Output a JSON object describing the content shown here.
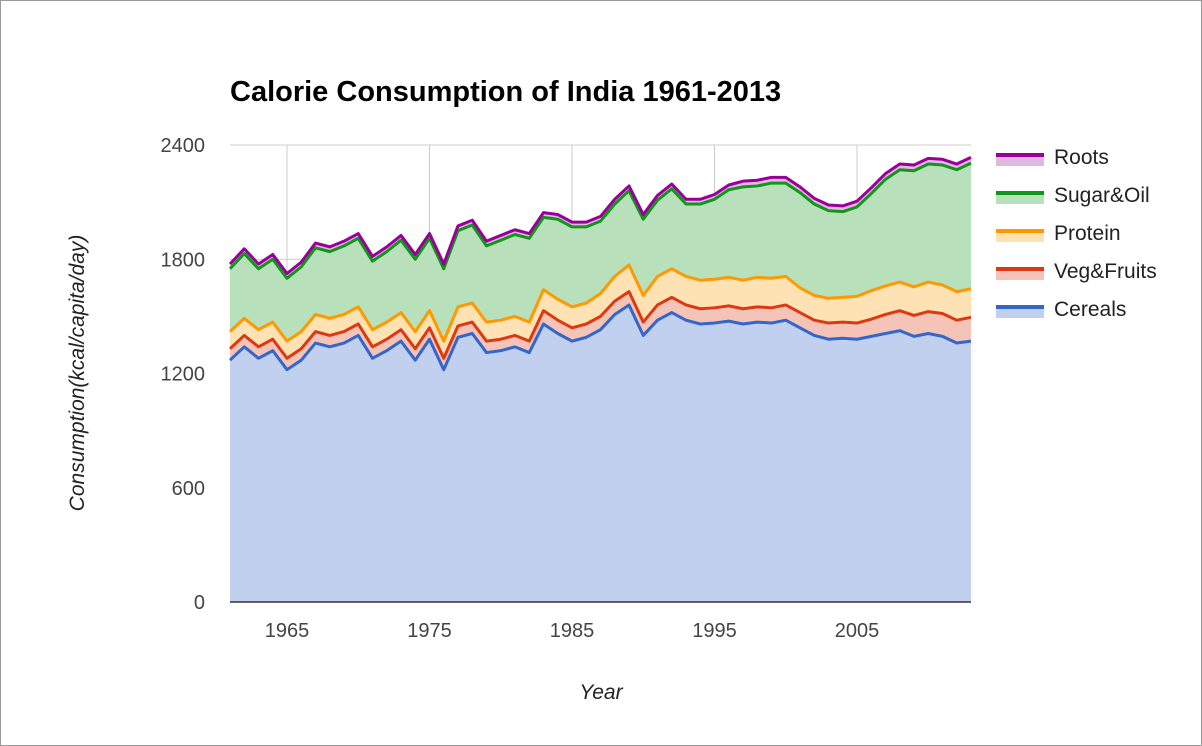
{
  "chart_data": {
    "type": "area",
    "stacked": true,
    "title": "Calorie Consumption of India 1961-2013",
    "xlabel": "Year",
    "ylabel": "Consumption(kcal/capita/day)",
    "xlim": [
      1961,
      2013
    ],
    "ylim": [
      0,
      2400
    ],
    "yticks": [
      "0",
      "600",
      "1200",
      "1800",
      "2400"
    ],
    "xticks": [
      "1965",
      "1975",
      "1985",
      "1995",
      "2005"
    ],
    "grid": true,
    "legend_position": "right",
    "x": [
      1961,
      1962,
      1963,
      1964,
      1965,
      1966,
      1967,
      1968,
      1969,
      1970,
      1971,
      1972,
      1973,
      1974,
      1975,
      1976,
      1977,
      1978,
      1979,
      1980,
      1981,
      1982,
      1983,
      1984,
      1985,
      1986,
      1987,
      1988,
      1989,
      1990,
      1991,
      1992,
      1993,
      1994,
      1995,
      1996,
      1997,
      1998,
      1999,
      2000,
      2001,
      2002,
      2003,
      2004,
      2005,
      2006,
      2007,
      2008,
      2009,
      2010,
      2011,
      2012,
      2013
    ],
    "series": [
      {
        "name": "Cereals",
        "color": "#3366cc",
        "fill": "#c2d0ef",
        "values": [
          1270,
          1340,
          1280,
          1320,
          1220,
          1270,
          1360,
          1340,
          1360,
          1400,
          1280,
          1320,
          1370,
          1270,
          1380,
          1220,
          1390,
          1410,
          1310,
          1320,
          1340,
          1310,
          1460,
          1410,
          1370,
          1390,
          1430,
          1510,
          1560,
          1400,
          1480,
          1520,
          1480,
          1460,
          1465,
          1475,
          1460,
          1470,
          1465,
          1480,
          1440,
          1400,
          1380,
          1385,
          1380,
          1395,
          1410,
          1425,
          1395,
          1410,
          1395,
          1360,
          1370
        ]
      },
      {
        "name": "Veg&Fruits",
        "color": "#dc3912",
        "fill": "#f5c4b8",
        "values": [
          60,
          60,
          60,
          60,
          60,
          60,
          60,
          60,
          60,
          60,
          60,
          60,
          60,
          60,
          60,
          60,
          60,
          60,
          60,
          60,
          60,
          60,
          70,
          70,
          70,
          70,
          70,
          70,
          70,
          70,
          80,
          80,
          80,
          80,
          80,
          80,
          80,
          80,
          80,
          80,
          80,
          80,
          85,
          85,
          85,
          90,
          100,
          105,
          110,
          115,
          120,
          120,
          125
        ]
      },
      {
        "name": "Protein",
        "color": "#ff9900",
        "fill": "#ffe2b3",
        "values": [
          90,
          90,
          90,
          90,
          90,
          90,
          90,
          90,
          90,
          90,
          90,
          90,
          90,
          90,
          90,
          90,
          100,
          100,
          100,
          100,
          100,
          100,
          110,
          110,
          110,
          110,
          120,
          130,
          140,
          140,
          150,
          150,
          150,
          150,
          150,
          150,
          150,
          155,
          155,
          150,
          130,
          130,
          130,
          130,
          140,
          150,
          150,
          150,
          150,
          155,
          150,
          150,
          150
        ]
      },
      {
        "name": "Sugar&Oil",
        "color": "#109618",
        "fill": "#b8e0bb",
        "values": [
          330,
          340,
          320,
          330,
          330,
          340,
          350,
          350,
          360,
          360,
          360,
          370,
          380,
          380,
          380,
          380,
          400,
          410,
          400,
          420,
          430,
          440,
          380,
          420,
          420,
          400,
          380,
          380,
          390,
          400,
          400,
          420,
          380,
          400,
          420,
          460,
          490,
          480,
          500,
          490,
          500,
          480,
          460,
          450,
          470,
          510,
          560,
          590,
          610,
          620,
          630,
          640,
          660
        ]
      },
      {
        "name": "Roots",
        "color": "#990099",
        "fill": "#e0b8e0",
        "values": [
          25,
          25,
          25,
          25,
          25,
          25,
          25,
          25,
          25,
          25,
          25,
          25,
          25,
          25,
          25,
          25,
          25,
          25,
          25,
          25,
          25,
          25,
          25,
          25,
          25,
          25,
          25,
          25,
          25,
          25,
          25,
          25,
          25,
          25,
          25,
          25,
          30,
          30,
          30,
          30,
          30,
          30,
          30,
          30,
          30,
          30,
          30,
          30,
          30,
          30,
          30,
          30,
          30
        ]
      }
    ],
    "legend_order": [
      "Roots",
      "Sugar&Oil",
      "Protein",
      "Veg&Fruits",
      "Cereals"
    ]
  }
}
